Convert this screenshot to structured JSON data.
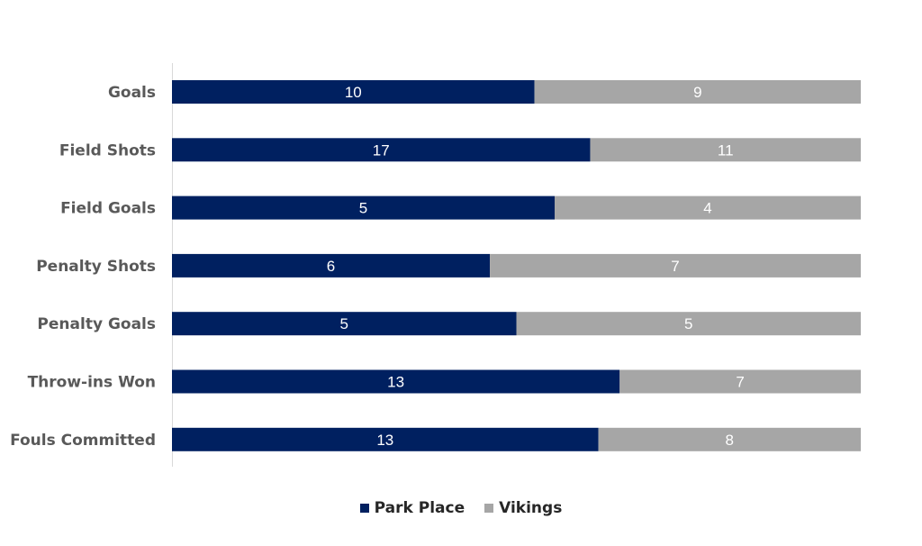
{
  "chart_data": {
    "type": "bar",
    "orientation": "horizontal",
    "stacking": "percent",
    "categories": [
      "Goals",
      "Field Shots",
      "Field Goals",
      "Penalty Shots",
      "Penalty Goals",
      "Throw-ins Won",
      "Fouls Committed"
    ],
    "series": [
      {
        "name": "Park Place",
        "values": [
          10,
          17,
          5,
          6,
          5,
          13,
          13
        ],
        "color": "#002060"
      },
      {
        "name": "Vikings",
        "values": [
          9,
          11,
          4,
          7,
          5,
          7,
          8
        ],
        "color": "#A6A6A6"
      }
    ],
    "title": "",
    "xlabel": "",
    "ylabel": "",
    "grid": false,
    "legend_position": "bottom"
  }
}
